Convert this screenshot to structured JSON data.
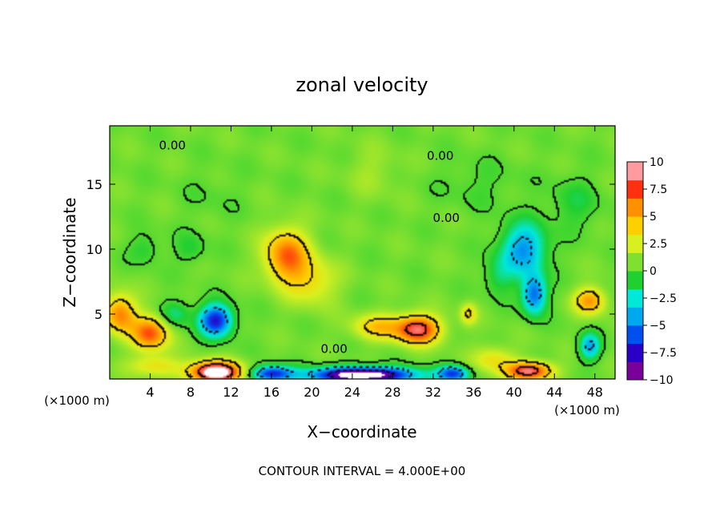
{
  "chart_data": {
    "type": "heatmap",
    "title": "zonal velocity",
    "xlabel": "X−coordinate",
    "ylabel": "Z−coordinate",
    "x_unit_left": "(×1000 m)",
    "x_unit_right": "(×1000 m)",
    "footer": "CONTOUR INTERVAL = 4.000E+00",
    "xlim": [
      0,
      50
    ],
    "ylim": [
      0,
      19.5
    ],
    "x_ticks": [
      {
        "value": 4,
        "label": "4"
      },
      {
        "value": 8,
        "label": "8"
      },
      {
        "value": 12,
        "label": "12"
      },
      {
        "value": 16,
        "label": "16"
      },
      {
        "value": 20,
        "label": "20"
      },
      {
        "value": 24,
        "label": "24"
      },
      {
        "value": 28,
        "label": "28"
      },
      {
        "value": 32,
        "label": "32"
      },
      {
        "value": 36,
        "label": "36"
      },
      {
        "value": 40,
        "label": "40"
      },
      {
        "value": 44,
        "label": "44"
      },
      {
        "value": 48,
        "label": "48"
      }
    ],
    "y_ticks": [
      {
        "value": 5,
        "label": "5"
      },
      {
        "value": 10,
        "label": "10"
      },
      {
        "value": 15,
        "label": "15"
      }
    ],
    "colorbar": {
      "min": -10,
      "max": 10,
      "ticks": [
        {
          "value": 10,
          "label": "10"
        },
        {
          "value": 7.5,
          "label": "7.5"
        },
        {
          "value": 5,
          "label": "5"
        },
        {
          "value": 2.5,
          "label": "2.5"
        },
        {
          "value": 0,
          "label": "0"
        },
        {
          "value": -2.5,
          "label": "−2.5"
        },
        {
          "value": -5,
          "label": "−5"
        },
        {
          "value": -7.5,
          "label": "−7.5"
        },
        {
          "value": -10,
          "label": "−10"
        }
      ],
      "colors": [
        "#7a009a",
        "#2a00c8",
        "#0050f0",
        "#00a8f0",
        "#00e8d8",
        "#20d030",
        "#80e030",
        "#d8f020",
        "#ffd000",
        "#ff9000",
        "#ff3010",
        "#ff9aa0"
      ]
    },
    "contour_labels": [
      {
        "x": 6.2,
        "y": 18.0,
        "text": "0.00"
      },
      {
        "x": 32.7,
        "y": 17.2,
        "text": "0.00"
      },
      {
        "x": 33.3,
        "y": 12.4,
        "text": "0.00"
      },
      {
        "x": 22.2,
        "y": 2.3,
        "text": "0.00"
      }
    ],
    "features": [
      {
        "x": 17.5,
        "y": 9.5,
        "sx": 2.2,
        "sy": 2.0,
        "v": 6.5
      },
      {
        "x": 20.0,
        "y": 7.5,
        "sx": 2.5,
        "sy": 1.8,
        "v": 3.0
      },
      {
        "x": 30.5,
        "y": 3.8,
        "sx": 2.2,
        "sy": 1.1,
        "v": 8.5
      },
      {
        "x": 26.5,
        "y": 4.0,
        "sx": 2.5,
        "sy": 1.0,
        "v": 4.0
      },
      {
        "x": 4.0,
        "y": 3.5,
        "sx": 1.8,
        "sy": 1.3,
        "v": 7.0
      },
      {
        "x": 1.0,
        "y": 5.0,
        "sx": 1.6,
        "sy": 1.5,
        "v": 6.0
      },
      {
        "x": 10.5,
        "y": 4.5,
        "sx": 1.6,
        "sy": 1.2,
        "v": -8.5
      },
      {
        "x": 6.5,
        "y": 5.0,
        "sx": 1.5,
        "sy": 1.0,
        "v": -2.5
      },
      {
        "x": 41.0,
        "y": 10.0,
        "sx": 2.2,
        "sy": 2.0,
        "v": -5.5
      },
      {
        "x": 42.0,
        "y": 6.5,
        "sx": 1.2,
        "sy": 1.5,
        "v": -6.5
      },
      {
        "x": 38.5,
        "y": 8.0,
        "sx": 1.5,
        "sy": 1.5,
        "v": -2.0
      },
      {
        "x": 47.5,
        "y": 2.5,
        "sx": 1.0,
        "sy": 1.0,
        "v": -5.0
      },
      {
        "x": 47.5,
        "y": 6.0,
        "sx": 1.5,
        "sy": 1.0,
        "v": 5.5
      },
      {
        "x": 41.5,
        "y": 0.6,
        "sx": 2.2,
        "sy": 0.7,
        "v": 9.0
      },
      {
        "x": 38.0,
        "y": 1.5,
        "sx": 2.0,
        "sy": 1.0,
        "v": 3.0
      },
      {
        "x": 10.5,
        "y": 0.5,
        "sx": 2.5,
        "sy": 0.8,
        "v": 12.0
      },
      {
        "x": 4.5,
        "y": 1.0,
        "sx": 2.5,
        "sy": 0.8,
        "v": 3.0
      },
      {
        "x": 25.0,
        "y": 0.3,
        "sx": 5.0,
        "sy": 0.6,
        "v": -13.0
      },
      {
        "x": 16.0,
        "y": 0.4,
        "sx": 2.0,
        "sy": 0.6,
        "v": -8.0
      },
      {
        "x": 34.0,
        "y": 0.4,
        "sx": 1.5,
        "sy": 0.6,
        "v": -7.0
      },
      {
        "x": 8.0,
        "y": 10.0,
        "sx": 1.5,
        "sy": 1.2,
        "v": -1.5
      },
      {
        "x": 3.5,
        "y": 10.0,
        "sx": 1.5,
        "sy": 1.2,
        "v": -1.5
      },
      {
        "x": 46.0,
        "y": 13.5,
        "sx": 2.5,
        "sy": 2.0,
        "v": -1.5
      },
      {
        "x": 36.5,
        "y": 15.0,
        "sx": 4.0,
        "sy": 2.0,
        "v": -0.8
      },
      {
        "x": 10.0,
        "y": 14.0,
        "sx": 3.0,
        "sy": 2.0,
        "v": -0.5
      },
      {
        "x": 26.0,
        "y": 16.0,
        "sx": 2.5,
        "sy": 2.0,
        "v": 1.0
      },
      {
        "x": 35.5,
        "y": 5.0,
        "sx": 0.8,
        "sy": 0.8,
        "v": 3.5
      }
    ]
  }
}
